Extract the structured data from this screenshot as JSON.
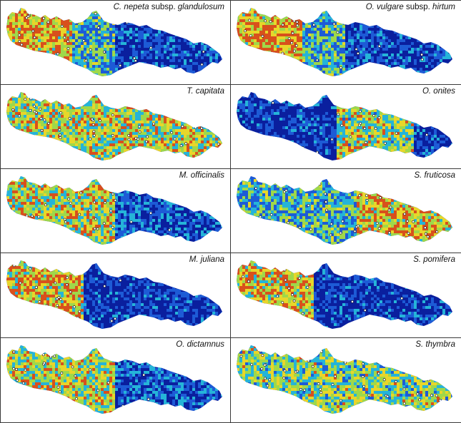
{
  "panels": [
    {
      "id": "c-nepeta",
      "label_parts": [
        {
          "t": "C. nepeta",
          "i": true
        },
        {
          "t": " subsp. ",
          "i": false
        },
        {
          "t": "glandulosum",
          "i": true
        }
      ],
      "pattern": "west-heavy",
      "points": 45
    },
    {
      "id": "o-vulgare",
      "label_parts": [
        {
          "t": "O. vulgare",
          "i": true
        },
        {
          "t": " subsp. ",
          "i": false
        },
        {
          "t": "hirtum",
          "i": true
        }
      ],
      "pattern": "west-heavy",
      "points": 45
    },
    {
      "id": "t-capitata",
      "label_parts": [
        {
          "t": "T. capitata",
          "i": true
        }
      ],
      "pattern": "widespread",
      "points": 70
    },
    {
      "id": "o-onites",
      "label_parts": [
        {
          "t": "O. onites",
          "i": true
        }
      ],
      "pattern": "central-east",
      "points": 25
    },
    {
      "id": "m-officinalis",
      "label_parts": [
        {
          "t": "M. officinalis",
          "i": true
        }
      ],
      "pattern": "west-central",
      "points": 40
    },
    {
      "id": "s-fruticosa",
      "label_parts": [
        {
          "t": "S. fruticosa",
          "i": true
        }
      ],
      "pattern": "widespread-east",
      "points": 60
    },
    {
      "id": "m-juliana",
      "label_parts": [
        {
          "t": "M. juliana",
          "i": true
        }
      ],
      "pattern": "west",
      "points": 30
    },
    {
      "id": "s-pomifera",
      "label_parts": [
        {
          "t": "S. pomifera",
          "i": true
        }
      ],
      "pattern": "west",
      "points": 28
    },
    {
      "id": "o-dictamnus",
      "label_parts": [
        {
          "t": "O. dictamnus",
          "i": true
        }
      ],
      "pattern": "west-central",
      "points": 40
    },
    {
      "id": "s-thymbra",
      "label_parts": [
        {
          "t": "S. thymbra",
          "i": true
        }
      ],
      "pattern": "widespread-south",
      "points": 65
    }
  ],
  "colors": {
    "low": "#0a1f9e",
    "mid_low": "#1d5bd6",
    "mid": "#25b4d8",
    "mid_high": "#9fd84a",
    "high": "#e8d62a",
    "peak": "#d8501c",
    "point_fill": "#ffffff",
    "point_stroke": "#111111"
  }
}
